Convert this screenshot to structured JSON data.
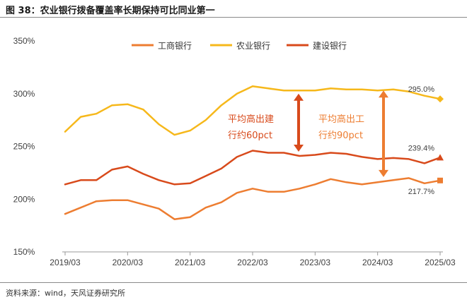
{
  "header": {
    "title": "图 38：农业银行拨备覆盖率长期保持可比同业第一"
  },
  "footer": {
    "source": "资料来源：wind，天风证券研究所"
  },
  "colors": {
    "icbc": "#ed7d31",
    "abc": "#f6b81b",
    "ccb": "#d84a1b",
    "arrow_ccb": "#d84a1b",
    "arrow_icbc": "#ed7d31"
  },
  "chart_data": {
    "type": "line",
    "title": "",
    "ylabel": "",
    "xlabel": "",
    "ylim": [
      150,
      350
    ],
    "yticks": [
      "150%",
      "200%",
      "250%",
      "300%",
      "350%"
    ],
    "yticks_values": [
      150,
      200,
      250,
      300,
      350
    ],
    "xtick_labels": [
      "2019/03",
      "2020/03",
      "2021/03",
      "2022/03",
      "2023/03",
      "2024/03",
      "2025/03"
    ],
    "xtick_index": [
      0,
      4,
      8,
      12,
      16,
      20,
      24
    ],
    "x": [
      "2019/03",
      "2019/06",
      "2019/09",
      "2019/12",
      "2020/03",
      "2020/06",
      "2020/09",
      "2020/12",
      "2021/03",
      "2021/06",
      "2021/09",
      "2021/12",
      "2022/03",
      "2022/06",
      "2022/09",
      "2022/12",
      "2023/03",
      "2023/06",
      "2023/09",
      "2023/12",
      "2024/03",
      "2024/06",
      "2024/09",
      "2024/12",
      "2025/03"
    ],
    "series": [
      {
        "name": "工商银行",
        "key": "icbc",
        "values": [
          186,
          192,
          198,
          199,
          199,
          195,
          191,
          181,
          183,
          192,
          197,
          206,
          210,
          207,
          207,
          210,
          214,
          219,
          216,
          214,
          216,
          218,
          220,
          215,
          217.7
        ]
      },
      {
        "name": "农业银行",
        "key": "abc",
        "values": [
          264,
          278,
          281,
          289,
          290,
          285,
          271,
          261,
          265,
          275,
          289,
          300,
          307,
          305,
          303,
          303,
          303,
          305,
          304,
          304,
          303,
          304,
          302,
          298,
          295.0
        ]
      },
      {
        "name": "建设银行",
        "key": "ccb",
        "values": [
          214,
          218,
          218,
          228,
          231,
          224,
          218,
          214,
          215,
          222,
          229,
          240,
          246,
          244,
          244,
          241,
          242,
          244,
          243,
          240,
          238,
          239,
          238,
          234,
          239.4
        ]
      }
    ],
    "end_labels": [
      {
        "series": "abc",
        "text": "295.0%"
      },
      {
        "series": "ccb",
        "text": "239.4%"
      },
      {
        "series": "icbc",
        "text": "217.7%"
      }
    ],
    "annotations": [
      {
        "lines": [
          "平均高出建",
          "行约60pct"
        ],
        "color_key": "ccb",
        "from": 300,
        "to": 245
      },
      {
        "lines": [
          "平均高出工",
          "行约90pct"
        ],
        "color_key": "icbc",
        "from": 303,
        "to": 221
      }
    ]
  }
}
